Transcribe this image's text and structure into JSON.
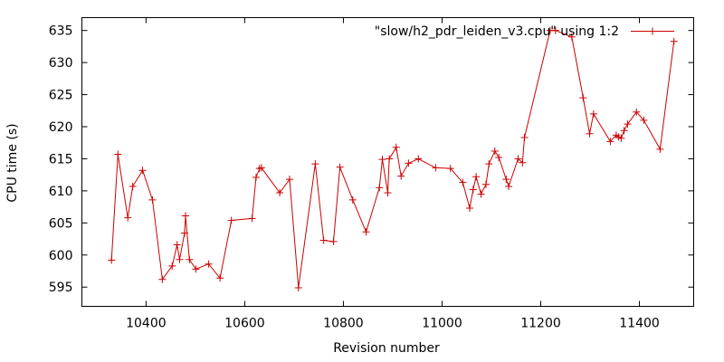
{
  "chart_data": {
    "type": "line",
    "title": "",
    "xlabel": "Revision number",
    "ylabel": "CPU time (s)",
    "xlim": [
      10270,
      11510
    ],
    "ylim": [
      592,
      637
    ],
    "xticks": [
      10400,
      10600,
      10800,
      11000,
      11200,
      11400
    ],
    "yticks": [
      595,
      600,
      605,
      610,
      615,
      620,
      625,
      630,
      635
    ],
    "grid": false,
    "legend_position": "top-right",
    "series_color": "#cc0000",
    "series": [
      {
        "name": "\"slow/h2_pdr_leiden_v3.cpu\" using 1:2",
        "x": [
          10330,
          10343,
          10363,
          10373,
          10393,
          10413,
          10433,
          10453,
          10463,
          10468,
          10478,
          10480,
          10488,
          10501,
          10527,
          10550,
          10573,
          10615,
          10623,
          10630,
          10634,
          10671,
          10691,
          10709,
          10743,
          10760,
          10780,
          10793,
          10819,
          10846,
          10873,
          10879,
          10890,
          10893,
          10907,
          10917,
          10932,
          10952,
          10987,
          11017,
          11042,
          11056,
          11063,
          11069,
          11079,
          11089,
          11095,
          11107,
          11115,
          11130,
          11135,
          11154,
          11163,
          11167,
          11219,
          11230,
          11263,
          11286,
          11299,
          11307,
          11341,
          11353,
          11358,
          11363,
          11369,
          11376,
          11394,
          11409,
          11442,
          11470
        ],
        "values": [
          599.2,
          615.7,
          605.8,
          610.7,
          613.2,
          608.6,
          596.2,
          598.3,
          601.6,
          599.3,
          603.4,
          606.1,
          599.3,
          597.8,
          598.6,
          596.4,
          605.4,
          605.7,
          612.1,
          613.5,
          613.6,
          609.7,
          611.8,
          594.9,
          614.2,
          602.3,
          602.1,
          613.7,
          608.6,
          603.6,
          610.5,
          614.9,
          609.7,
          615.0,
          616.8,
          612.3,
          614.3,
          615.0,
          613.6,
          613.5,
          611.3,
          607.3,
          610.2,
          612.2,
          609.5,
          611.0,
          614.2,
          616.2,
          615.2,
          611.8,
          610.7,
          615.0,
          614.4,
          618.3,
          635.0,
          635.0,
          634.0,
          624.5,
          618.9,
          622.0,
          617.7,
          618.7,
          618.4,
          618.2,
          619.4,
          620.4,
          622.3,
          621.0,
          616.5,
          633.3
        ]
      }
    ]
  }
}
